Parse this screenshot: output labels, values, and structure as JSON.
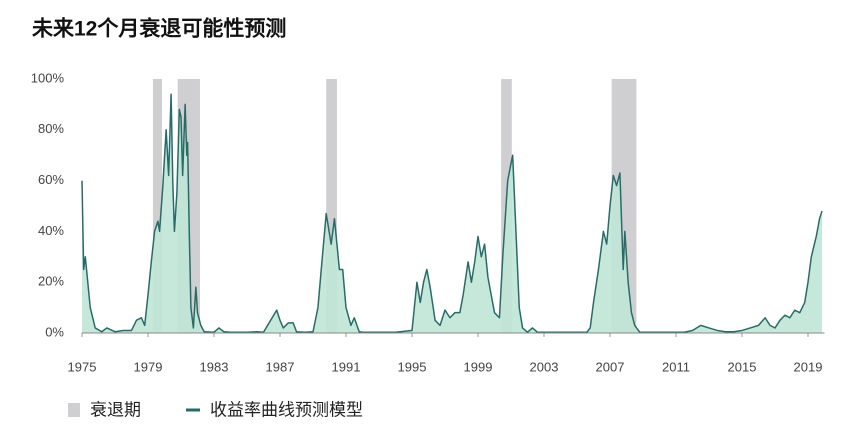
{
  "chart_data": {
    "type": "area",
    "title": "未来12个月衰退可能性预测",
    "recessions": {
      "name": "衰退期",
      "color": "#cfcfd1",
      "periods": [
        [
          1979.3,
          1979.85
        ],
        [
          1980.8,
          1982.15
        ],
        [
          1989.8,
          1990.45
        ],
        [
          2000.4,
          2001.05
        ],
        [
          2007.1,
          2008.6
        ]
      ]
    },
    "series": [
      {
        "name": "收益率曲线预测模型",
        "color": "#2a6b68",
        "fill": "#bfe6d7",
        "x": [
          1975.0,
          1975.1,
          1975.2,
          1975.5,
          1975.8,
          1976.2,
          1976.5,
          1977.0,
          1977.5,
          1978.0,
          1978.3,
          1978.6,
          1978.8,
          1979.0,
          1979.2,
          1979.4,
          1979.6,
          1979.7,
          1979.9,
          1980.1,
          1980.25,
          1980.4,
          1980.5,
          1980.6,
          1980.75,
          1980.9,
          1981.0,
          1981.1,
          1981.25,
          1981.35,
          1981.4,
          1981.5,
          1981.6,
          1981.75,
          1981.9,
          1982.0,
          1982.2,
          1982.4,
          1983.0,
          1983.3,
          1983.6,
          1984.0,
          1985.0,
          1985.6,
          1986.0,
          1986.8,
          1987.0,
          1987.2,
          1987.5,
          1987.8,
          1988.0,
          1988.5,
          1989.0,
          1989.3,
          1989.5,
          1989.8,
          1990.1,
          1990.3,
          1990.6,
          1990.8,
          1991.0,
          1991.3,
          1991.5,
          1991.8,
          1992.0,
          1993.0,
          1994.0,
          1995.0,
          1995.3,
          1995.5,
          1995.7,
          1995.9,
          1996.1,
          1996.4,
          1996.7,
          1997.0,
          1997.3,
          1997.6,
          1997.9,
          1998.1,
          1998.4,
          1998.6,
          1998.8,
          1999.0,
          1999.2,
          1999.4,
          1999.6,
          1999.8,
          2000.0,
          2000.3,
          2000.5,
          2000.8,
          2001.1,
          2001.3,
          2001.5,
          2001.7,
          2002.0,
          2002.3,
          2002.6,
          2003.0,
          2004.0,
          2005.0,
          2005.6,
          2005.8,
          2006.0,
          2006.3,
          2006.6,
          2006.8,
          2007.0,
          2007.2,
          2007.4,
          2007.6,
          2007.8,
          2007.9,
          2008.1,
          2008.3,
          2008.5,
          2008.8,
          2009.5,
          2010.5,
          2011.5,
          2012.0,
          2012.5,
          2013.0,
          2013.5,
          2014.0,
          2014.5,
          2015.0,
          2015.5,
          2016.0,
          2016.4,
          2016.7,
          2017.0,
          2017.3,
          2017.6,
          2017.9,
          2018.2,
          2018.5,
          2018.8,
          2019.0,
          2019.2,
          2019.5,
          2019.7,
          2019.85
        ],
        "values": [
          60,
          25,
          30,
          10,
          2,
          0.5,
          2,
          0.5,
          1,
          1,
          5,
          6,
          3,
          15,
          28,
          40,
          44,
          40,
          58,
          80,
          62,
          94,
          60,
          40,
          55,
          88,
          85,
          62,
          90,
          70,
          75,
          40,
          10,
          2,
          18,
          8,
          3,
          0.5,
          0.3,
          2,
          0.5,
          0.3,
          0.3,
          0.5,
          0.3,
          9,
          5,
          2,
          4,
          4,
          0.5,
          0.3,
          0.5,
          10,
          25,
          47,
          35,
          45,
          25,
          25,
          10,
          3,
          6,
          0.5,
          0.3,
          0.3,
          0.3,
          1,
          20,
          12,
          20,
          25,
          18,
          5,
          3,
          9,
          6,
          8,
          8,
          15,
          28,
          20,
          28,
          38,
          30,
          35,
          22,
          15,
          8,
          6,
          30,
          60,
          70,
          40,
          10,
          2,
          0.3,
          2,
          0.3,
          0.3,
          0.3,
          0.3,
          0.3,
          2,
          12,
          25,
          40,
          35,
          50,
          62,
          58,
          63,
          25,
          40,
          20,
          8,
          3,
          0.3,
          0.3,
          0.3,
          0.3,
          1,
          3,
          2,
          1,
          0.5,
          0.5,
          1,
          2,
          3,
          6,
          3,
          2,
          5,
          7,
          6,
          9,
          8,
          12,
          20,
          30,
          38,
          45,
          48
        ]
      }
    ],
    "xlim": [
      1975,
      2020
    ],
    "xticks": [
      1975,
      1979,
      1983,
      1987,
      1991,
      1995,
      1999,
      2003,
      2007,
      2011,
      2015,
      2019
    ],
    "ylim": [
      0,
      100
    ],
    "yticks": [
      {
        "value": 0,
        "label": "0%"
      },
      {
        "value": 20,
        "label": "20%"
      },
      {
        "value": 40,
        "label": "40%"
      },
      {
        "value": 60,
        "label": "60%"
      },
      {
        "value": 80,
        "label": "80%"
      },
      {
        "value": 100,
        "label": "100%"
      }
    ],
    "grid": false,
    "legend": "bottom"
  }
}
